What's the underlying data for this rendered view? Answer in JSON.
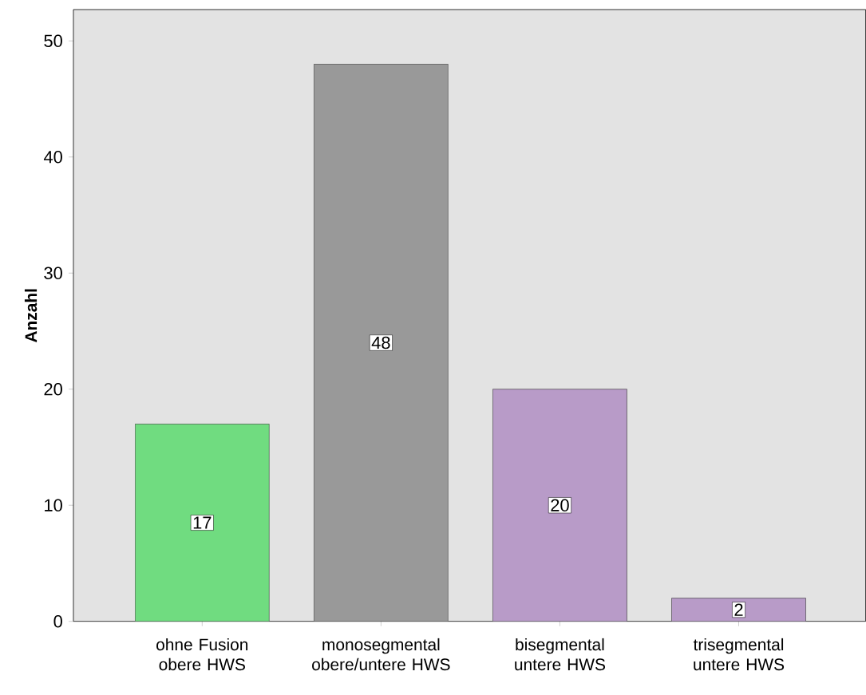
{
  "chart_data": {
    "type": "bar",
    "ylabel": "Anzahl",
    "categories": [
      "ohne Fusion obere HWS",
      "monosegmental obere/untere HWS",
      "bisegmental untere HWS",
      "trisegmental untere HWS"
    ],
    "values": [
      17,
      48,
      20,
      2
    ],
    "colors": [
      "#70dc80",
      "#999999",
      "#b89bc8",
      "#b89bc8"
    ],
    "ylim": [
      0,
      52.7
    ],
    "yticks": [
      0,
      10,
      20,
      30,
      40,
      50
    ],
    "data_labels": true,
    "grid": false
  }
}
